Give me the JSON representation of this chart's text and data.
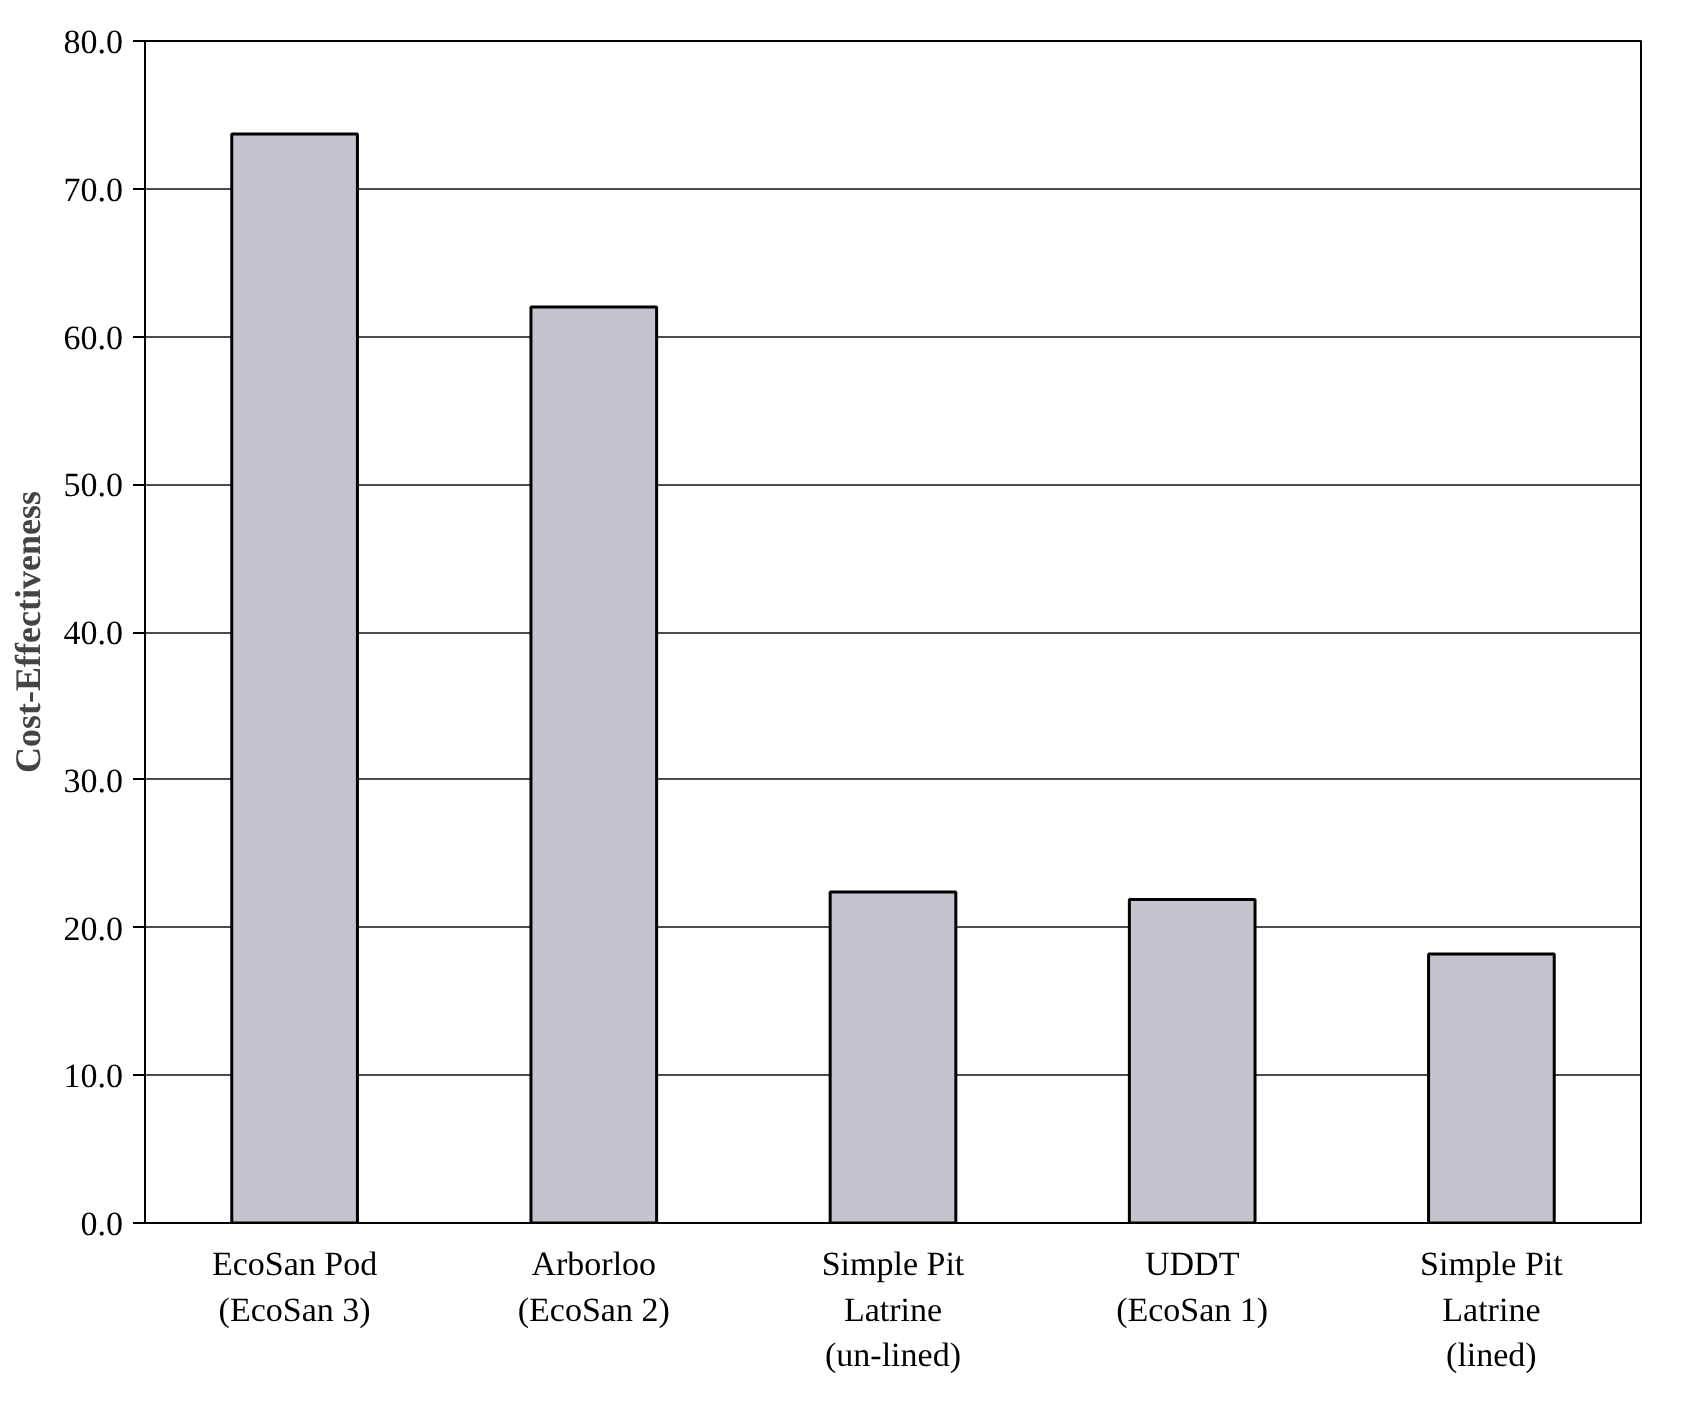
{
  "chart_data": {
    "type": "bar",
    "ylabel": "Cost-Effectiveness",
    "categories": [
      "EcoSan Pod (EcoSan 3)",
      "Arborloo (EcoSan 2)",
      "Simple Pit Latrine (un-lined)",
      "UDDT (EcoSan 1)",
      "Simple Pit Latrine (lined)"
    ],
    "values": [
      73.7,
      62.0,
      22.4,
      21.9,
      18.2
    ],
    "color": "#c4c4cc",
    "ylim": [
      0,
      80
    ],
    "yticks": [
      {
        "value": 0,
        "label": "0.0"
      },
      {
        "value": 10,
        "label": "10.0"
      },
      {
        "value": 20,
        "label": "20.0"
      },
      {
        "value": 30,
        "label": "30.0"
      },
      {
        "value": 40,
        "label": "40.0"
      },
      {
        "value": 50,
        "label": "50.0"
      },
      {
        "value": 60,
        "label": "60.0"
      },
      {
        "value": 70,
        "label": "70.0"
      },
      {
        "value": 80,
        "label": "80.0"
      }
    ],
    "grid": "y"
  }
}
